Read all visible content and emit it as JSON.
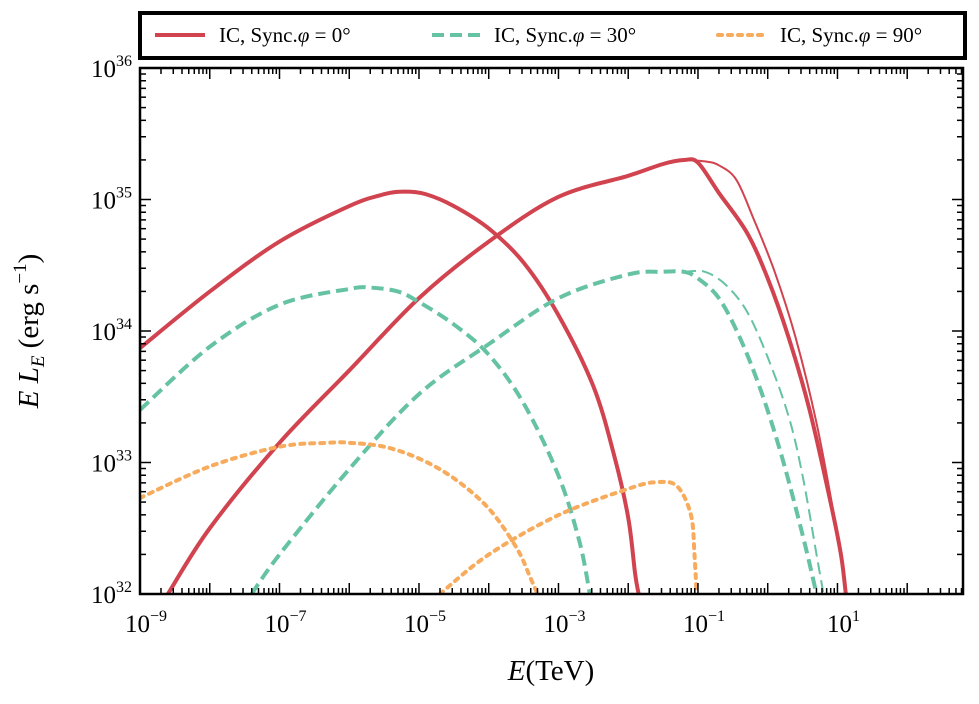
{
  "chart_data": {
    "type": "line",
    "title": "",
    "xlabel": {
      "italic": "E",
      "rest": "(TeV)"
    },
    "ylabel": {
      "pre": "E L",
      "sub": "E",
      "unit": " (erg s",
      "exp": "−1",
      "close": ")"
    },
    "xscale": "log",
    "yscale": "log",
    "xlim_log10": [
      -9,
      2.8
    ],
    "ylim_log10": [
      32,
      36
    ],
    "x_ticks": [
      {
        "exp": -9,
        "base": "10",
        "sup": "−9"
      },
      {
        "exp": -7,
        "base": "10",
        "sup": "−7"
      },
      {
        "exp": -5,
        "base": "10",
        "sup": "−5"
      },
      {
        "exp": -3,
        "base": "10",
        "sup": "−3"
      },
      {
        "exp": -1,
        "base": "10",
        "sup": "−1"
      },
      {
        "exp": 1,
        "base": "10",
        "sup": "1"
      }
    ],
    "y_ticks": [
      {
        "exp": 32,
        "base": "10",
        "sup": "32"
      },
      {
        "exp": 33,
        "base": "10",
        "sup": "33"
      },
      {
        "exp": 34,
        "base": "10",
        "sup": "34"
      },
      {
        "exp": 35,
        "base": "10",
        "sup": "35"
      },
      {
        "exp": 36,
        "base": "10",
        "sup": "36"
      }
    ],
    "legend": {
      "placement": "top, above plot",
      "entries": [
        {
          "label": "IC, Sync.",
          "phi": "φ",
          "angle": " = 0°",
          "color": "#d1434f",
          "style": "solid"
        },
        {
          "label": "IC, Sync.",
          "phi": "φ",
          "angle": " = 30°",
          "color": "#65c2a3",
          "style": "dashed"
        },
        {
          "label": "IC, Sync.",
          "phi": "φ",
          "angle": " = 90°",
          "color": "#f7ab5d",
          "style": "dotted"
        }
      ]
    },
    "series": [
      {
        "name": "Sync. φ=0°",
        "color": "#d1434f",
        "style": "solid",
        "width": 4,
        "points": [
          [
            -9,
            33.87
          ],
          [
            -8,
            34.3
          ],
          [
            -7,
            34.68
          ],
          [
            -6,
            34.95
          ],
          [
            -5.5,
            35.04
          ],
          [
            -5.2,
            35.06
          ],
          [
            -4.9,
            35.04
          ],
          [
            -4.5,
            34.95
          ],
          [
            -4,
            34.78
          ],
          [
            -3.5,
            34.52
          ],
          [
            -3,
            34.12
          ],
          [
            -2.5,
            33.58
          ],
          [
            -2.2,
            33.05
          ],
          [
            -2,
            32.58
          ],
          [
            -1.9,
            32.15
          ],
          [
            -1.85,
            32
          ]
        ]
      },
      {
        "name": "IC φ=0°",
        "color": "#d1434f",
        "style": "solid",
        "width": 4,
        "points": [
          [
            -8.6,
            32
          ],
          [
            -8,
            32.5
          ],
          [
            -7,
            33.15
          ],
          [
            -6,
            33.7
          ],
          [
            -5,
            34.25
          ],
          [
            -4,
            34.68
          ],
          [
            -3,
            35.02
          ],
          [
            -2,
            35.18
          ],
          [
            -1.5,
            35.27
          ],
          [
            -1.2,
            35.3
          ],
          [
            -1,
            35.28
          ],
          [
            -0.7,
            35.05
          ],
          [
            -0.3,
            34.75
          ],
          [
            0,
            34.4
          ],
          [
            0.3,
            33.95
          ],
          [
            0.6,
            33.4
          ],
          [
            0.9,
            32.7
          ],
          [
            1.05,
            32.3
          ],
          [
            1.12,
            32
          ]
        ]
      },
      {
        "name": "IC φ=0° (thin)",
        "color": "#d1434f",
        "style": "solid",
        "width": 2,
        "points": [
          [
            -1.2,
            35.3
          ],
          [
            -0.9,
            35.29
          ],
          [
            -0.7,
            35.26
          ],
          [
            -0.45,
            35.15
          ],
          [
            -0.2,
            34.85
          ],
          [
            0.1,
            34.45
          ],
          [
            0.4,
            33.95
          ],
          [
            0.7,
            33.3
          ],
          [
            0.95,
            32.6
          ],
          [
            1.1,
            32.1
          ],
          [
            1.13,
            32
          ]
        ]
      },
      {
        "name": "Sync. φ=30°",
        "color": "#65c2a3",
        "style": "dashed",
        "width": 4,
        "points": [
          [
            -9,
            33.4
          ],
          [
            -8,
            33.88
          ],
          [
            -7,
            34.2
          ],
          [
            -6,
            34.32
          ],
          [
            -5.7,
            34.33
          ],
          [
            -5.3,
            34.3
          ],
          [
            -5,
            34.22
          ],
          [
            -4.5,
            34.05
          ],
          [
            -4,
            33.82
          ],
          [
            -3.5,
            33.45
          ],
          [
            -3,
            32.9
          ],
          [
            -2.7,
            32.4
          ],
          [
            -2.55,
            32
          ]
        ]
      },
      {
        "name": "IC φ=30°",
        "color": "#65c2a3",
        "style": "dashed",
        "width": 4,
        "points": [
          [
            -7.4,
            32
          ],
          [
            -7,
            32.3
          ],
          [
            -6,
            32.95
          ],
          [
            -5,
            33.52
          ],
          [
            -4,
            33.9
          ],
          [
            -3,
            34.25
          ],
          [
            -2,
            34.43
          ],
          [
            -1.5,
            34.45
          ],
          [
            -1.2,
            34.45
          ],
          [
            -1,
            34.4
          ],
          [
            -0.7,
            34.25
          ],
          [
            -0.4,
            33.95
          ],
          [
            -0.1,
            33.55
          ],
          [
            0.2,
            33.05
          ],
          [
            0.5,
            32.45
          ],
          [
            0.7,
            32
          ]
        ]
      },
      {
        "name": "IC φ=30° (thin)",
        "color": "#65c2a3",
        "style": "dashed",
        "width": 2,
        "points": [
          [
            -1.2,
            34.45
          ],
          [
            -0.9,
            34.45
          ],
          [
            -0.6,
            34.35
          ],
          [
            -0.3,
            34.15
          ],
          [
            0,
            33.8
          ],
          [
            0.3,
            33.35
          ],
          [
            0.5,
            32.9
          ],
          [
            0.7,
            32.3
          ],
          [
            0.8,
            32
          ]
        ]
      },
      {
        "name": "Sync. φ=90°",
        "color": "#f7ab5d",
        "style": "dotted",
        "width": 4,
        "points": [
          [
            -9,
            32.73
          ],
          [
            -8,
            32.97
          ],
          [
            -7,
            33.12
          ],
          [
            -6.3,
            33.15
          ],
          [
            -6,
            33.15
          ],
          [
            -5.5,
            33.12
          ],
          [
            -5,
            33.03
          ],
          [
            -4.5,
            32.88
          ],
          [
            -4,
            32.65
          ],
          [
            -3.6,
            32.35
          ],
          [
            -3.4,
            32.12
          ],
          [
            -3.3,
            32
          ]
        ]
      },
      {
        "name": "IC φ=90°",
        "color": "#f7ab5d",
        "style": "dotted",
        "width": 4,
        "points": [
          [
            -4.7,
            32
          ],
          [
            -4,
            32.3
          ],
          [
            -3,
            32.6
          ],
          [
            -2,
            32.8
          ],
          [
            -1.6,
            32.85
          ],
          [
            -1.3,
            32.82
          ],
          [
            -1.1,
            32.6
          ],
          [
            -1.05,
            32.3
          ],
          [
            -1.02,
            32
          ]
        ]
      }
    ]
  }
}
